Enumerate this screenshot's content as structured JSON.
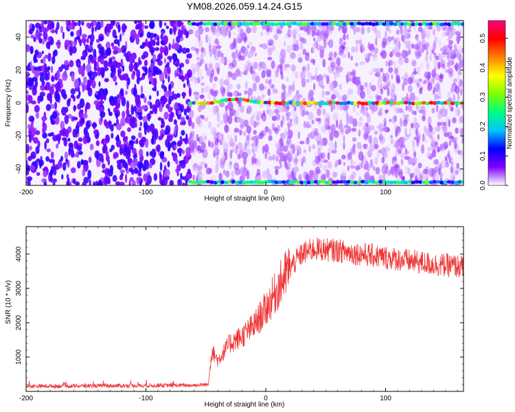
{
  "title": "YM08.2026.059.14.24.G15",
  "chart_data": [
    {
      "type": "heatmap",
      "title": "YM08.2026.059.14.24.G15",
      "xlabel": "Height of straight line (km)",
      "ylabel": "Frequency (Hz)",
      "xlim": [
        -200,
        165
      ],
      "ylim": [
        -50,
        50
      ],
      "x_ticks": [
        "-200",
        "-100",
        "0",
        "100"
      ],
      "y_ticks": [
        "40",
        "20",
        "0",
        "-20",
        "-40"
      ],
      "colorbar": {
        "label": "Normalized spectral amplitude",
        "range": [
          0,
          0.56
        ],
        "ticks": [
          "0.0",
          "0.1",
          "0.2",
          "0.3",
          "0.4",
          "0.5"
        ],
        "colors": [
          "#ffffff",
          "#8000ff",
          "#0000ff",
          "#00c8ff",
          "#00ff80",
          "#80ff00",
          "#ffff00",
          "#ff8000",
          "#ff0000",
          "#ff0080"
        ]
      },
      "features": [
        {
          "description_x_start": -63,
          "description_frequency": 0,
          "amplitude_peak": 0.55
        },
        {
          "description_x_start": -63,
          "description_frequency": 48,
          "amplitude_peak": 0.3
        },
        {
          "description_x_start": -63,
          "description_frequency": -48,
          "amplitude_peak": 0.3
        }
      ]
    },
    {
      "type": "line",
      "xlabel": "Height of straight line (km)",
      "ylabel": "SNR (10 * v/v)",
      "xlim": [
        -200,
        165
      ],
      "ylim": [
        0,
        4800
      ],
      "x_ticks": [
        "-200",
        "-100",
        "0",
        "100"
      ],
      "y_ticks": [
        "1000",
        "2000",
        "3000",
        "4000"
      ],
      "color": "#ee3333",
      "x": [
        -200,
        -150,
        -100,
        -60,
        -48,
        -45,
        -40,
        -30,
        -20,
        -10,
        0,
        10,
        20,
        30,
        40,
        60,
        80,
        100,
        120,
        140,
        160,
        165
      ],
      "y": [
        150,
        160,
        170,
        180,
        200,
        1200,
        900,
        1400,
        1600,
        1900,
        2400,
        3000,
        3600,
        4000,
        4150,
        4100,
        4000,
        3900,
        3800,
        3700,
        3650,
        3600
      ]
    }
  ]
}
